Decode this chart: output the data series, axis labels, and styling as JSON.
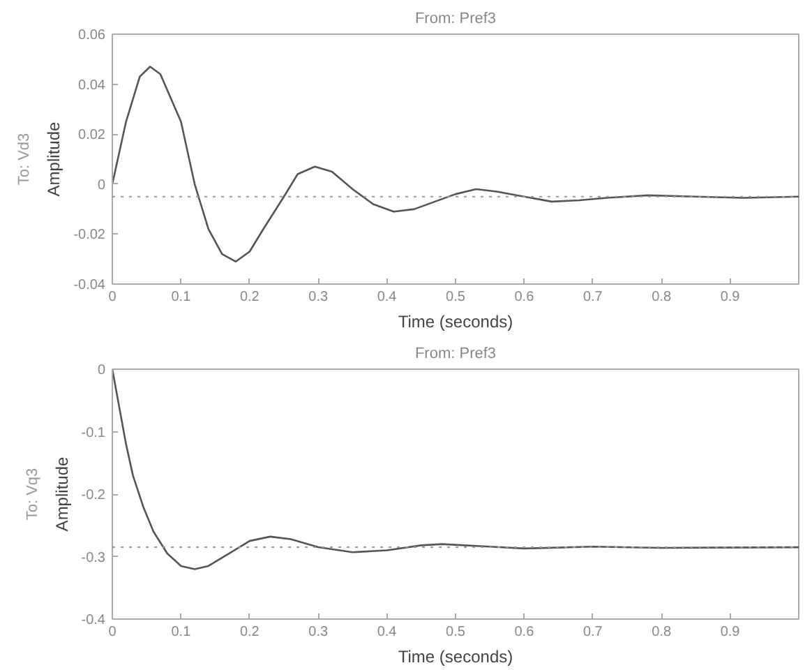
{
  "chart_data": [
    {
      "type": "line",
      "title": "From: Pref3",
      "xlabel": "Time (seconds)",
      "ylabel": "Amplitude",
      "annotations": [
        "To: Vd3"
      ],
      "x": [
        0,
        0.02,
        0.04,
        0.055,
        0.07,
        0.1,
        0.12,
        0.14,
        0.16,
        0.18,
        0.2,
        0.22,
        0.25,
        0.27,
        0.295,
        0.32,
        0.35,
        0.38,
        0.41,
        0.44,
        0.47,
        0.5,
        0.53,
        0.56,
        0.6,
        0.64,
        0.68,
        0.72,
        0.78,
        0.85,
        0.92,
        1.0
      ],
      "series": [
        {
          "color": "#555555",
          "values": [
            0,
            0.025,
            0.043,
            0.047,
            0.044,
            0.025,
            0.0,
            -0.018,
            -0.028,
            -0.031,
            -0.027,
            -0.018,
            -0.005,
            0.004,
            0.007,
            0.005,
            -0.002,
            -0.008,
            -0.011,
            -0.01,
            -0.007,
            -0.004,
            -0.002,
            -0.003,
            -0.005,
            -0.007,
            -0.0065,
            -0.0055,
            -0.0045,
            -0.005,
            -0.0055,
            -0.005
          ]
        }
      ],
      "xlim": [
        0,
        1.0
      ],
      "ylim": [
        -0.04,
        0.06
      ],
      "xticks": [
        0,
        0.1,
        0.2,
        0.3,
        0.4,
        0.5,
        0.6,
        0.7,
        0.8,
        0.9
      ],
      "yticks": [
        -0.04,
        -0.02,
        0,
        0.02,
        0.04,
        0.06
      ],
      "ref_lines": [
        {
          "axis": "y",
          "value": -0.005,
          "color": "#999999",
          "line_style": "dotted"
        }
      ],
      "grid": false
    },
    {
      "type": "line",
      "title": "From: Pref3",
      "xlabel": "Time (seconds)",
      "ylabel": "Amplitude",
      "annotations": [
        "To: Vq3"
      ],
      "x": [
        0,
        0.01,
        0.02,
        0.03,
        0.045,
        0.06,
        0.08,
        0.1,
        0.12,
        0.14,
        0.17,
        0.2,
        0.23,
        0.26,
        0.3,
        0.35,
        0.4,
        0.45,
        0.48,
        0.55,
        0.6,
        0.7,
        0.8,
        1.0
      ],
      "series": [
        {
          "color": "#555555",
          "values": [
            0,
            -0.06,
            -0.12,
            -0.17,
            -0.22,
            -0.26,
            -0.295,
            -0.315,
            -0.32,
            -0.315,
            -0.295,
            -0.275,
            -0.268,
            -0.272,
            -0.285,
            -0.293,
            -0.29,
            -0.282,
            -0.28,
            -0.284,
            -0.287,
            -0.284,
            -0.286,
            -0.285
          ]
        }
      ],
      "xlim": [
        0,
        1.0
      ],
      "ylim": [
        -0.4,
        0
      ],
      "xticks": [
        0,
        0.1,
        0.2,
        0.3,
        0.4,
        0.5,
        0.6,
        0.7,
        0.8,
        0.9
      ],
      "yticks": [
        -0.4,
        -0.3,
        -0.2,
        -0.1,
        0
      ],
      "ref_lines": [
        {
          "axis": "y",
          "value": -0.285,
          "color": "#999999",
          "line_style": "dotted"
        }
      ],
      "grid": false
    }
  ]
}
